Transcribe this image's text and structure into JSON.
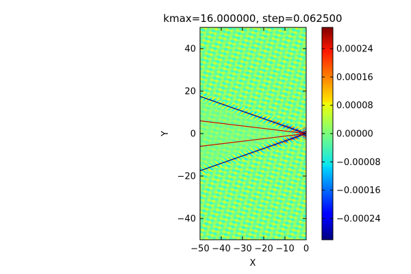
{
  "chart_data": {
    "type": "heatmap",
    "title": "kmax=16.000000, step=0.062500",
    "xlabel": "X",
    "ylabel": "Y",
    "xlim": [
      -50,
      0
    ],
    "ylim": [
      -50,
      50
    ],
    "x_ticks": [
      "−50",
      "−40",
      "−30",
      "−20",
      "−10",
      "0"
    ],
    "x_tick_values": [
      -50,
      -40,
      -30,
      -20,
      -10,
      0
    ],
    "y_ticks": [
      "−40",
      "−20",
      "0",
      "20",
      "40"
    ],
    "y_tick_values": [
      -40,
      -20,
      0,
      20,
      40
    ],
    "colormap": "jet",
    "colorbar": {
      "range": [
        -0.0003,
        0.0003
      ],
      "tick_values": [
        -0.00024,
        -0.00016,
        -8e-05,
        0,
        8e-05,
        0.00016,
        0.00024
      ],
      "tick_labels": [
        "−0.00024",
        "−0.00016",
        "−0.00008",
        "0.00000",
        "0.00008",
        "0.00016",
        "0.00024"
      ]
    },
    "lines": [
      {
        "color": "#000080",
        "x": [
          -50,
          0
        ],
        "y": [
          17.5,
          0
        ]
      },
      {
        "color": "#000080",
        "x": [
          -50,
          0
        ],
        "y": [
          -17.5,
          0
        ]
      },
      {
        "color": "#cc0000",
        "x": [
          -50,
          0
        ],
        "y": [
          6.0,
          0
        ]
      },
      {
        "color": "#cc0000",
        "x": [
          -50,
          0
        ],
        "y": [
          -6.0,
          0
        ]
      }
    ]
  }
}
